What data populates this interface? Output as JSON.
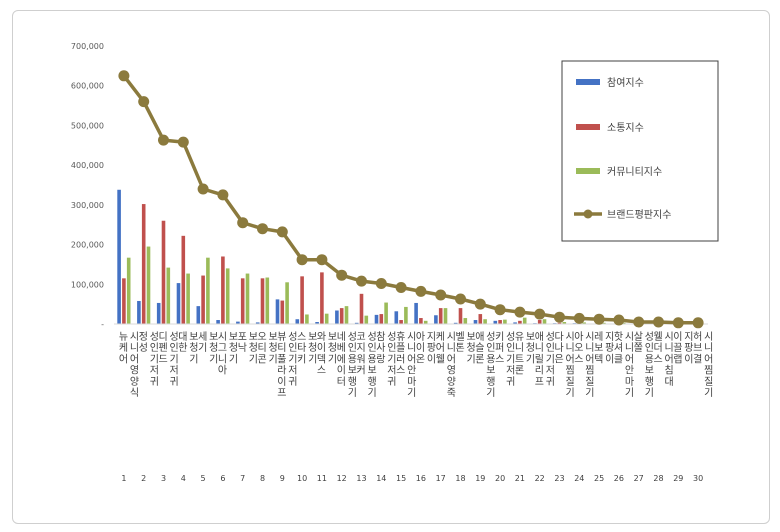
{
  "chart_data": {
    "type": "bar",
    "title": "",
    "xlabel": "",
    "ylabel": "",
    "ylim": [
      0,
      700000
    ],
    "yticks": [
      "-",
      "100,000",
      "200,000",
      "300,000",
      "400,000",
      "500,000",
      "600,000",
      "700,000"
    ],
    "legend_position": "top-right",
    "grid": false,
    "categories": [
      "뉴케어 시니어영양식",
      "정성 성인기저귀",
      "디펜드 성인기저귀",
      "대한 보청기",
      "세기 보청기",
      "시그니아 보청기",
      "포낙 보청기",
      "오티콘 보청기",
      "뷰티풀라이프 성인기저귀",
      "스타키 보청기",
      "와이덱스 보청기",
      "네베에이터 성인용보행기",
      "코지워커 성인용보행기",
      "참사랑 성인기저귀",
      "휴플러스 시니어안마기",
      "아이온 지팡이",
      "케어웰 시니어영양죽",
      "벨톤 보청기",
      "애슬론 성인용보행기",
      "키퍼스 성인기저귀",
      "유니트론 보청기",
      "애니릴리프 성인기저귀",
      "다나은 시니어찜질기",
      "아오스 시니어찜질기",
      "레보텍 지팡이",
      "핫셔클 시니어안마기",
      "살쫄 성인용보행기",
      "웰더스 시니어침대",
      "이끌랩 지팡이",
      "허브결 시니어찜질기"
    ],
    "index_labels": [
      "1",
      "2",
      "3",
      "4",
      "5",
      "6",
      "7",
      "8",
      "9",
      "10",
      "11",
      "12",
      "13",
      "14",
      "15",
      "16",
      "17",
      "18",
      "19",
      "20",
      "21",
      "22",
      "23",
      "24",
      "25",
      "26",
      "27",
      "28",
      "29",
      "30"
    ],
    "series": [
      {
        "name": "참여지수",
        "type": "bar",
        "color": "#4472C4",
        "values": [
          338000,
          58000,
          53000,
          103000,
          45000,
          10000,
          6000,
          4000,
          62000,
          12000,
          5000,
          34000,
          3000,
          23000,
          32000,
          53000,
          22000,
          3000,
          10000,
          8000,
          4000,
          2000,
          2000,
          2000,
          1000,
          1000,
          1000,
          1000,
          1000,
          1000
        ]
      },
      {
        "name": "소통지수",
        "type": "bar",
        "color": "#C0504D",
        "values": [
          115000,
          302000,
          260000,
          222000,
          122000,
          170000,
          115000,
          115000,
          59000,
          120000,
          130000,
          40000,
          76000,
          25000,
          10000,
          15000,
          40000,
          40000,
          25000,
          10000,
          8000,
          10000,
          3000,
          5000,
          2000,
          2000,
          2000,
          2000,
          1000,
          1000
        ]
      },
      {
        "name": "커뮤니티지수",
        "type": "bar",
        "color": "#9BBB59",
        "values": [
          167000,
          195000,
          142000,
          127000,
          167000,
          140000,
          127000,
          117000,
          105000,
          24000,
          26000,
          45000,
          21000,
          54000,
          43000,
          8000,
          40000,
          15000,
          12000,
          11000,
          16000,
          12000,
          5000,
          4000,
          3000,
          3000,
          2000,
          2000,
          1000,
          1000
        ]
      },
      {
        "name": "브랜드평판지수",
        "type": "line",
        "color": "#8B7A3D",
        "values": [
          625000,
          560000,
          463000,
          458000,
          340000,
          325000,
          255000,
          240000,
          232000,
          162000,
          162000,
          123000,
          108000,
          102000,
          92000,
          82000,
          73000,
          63000,
          50000,
          36000,
          30000,
          25000,
          17000,
          14000,
          12000,
          10000,
          5000,
          5000,
          3000,
          3000
        ]
      }
    ]
  }
}
